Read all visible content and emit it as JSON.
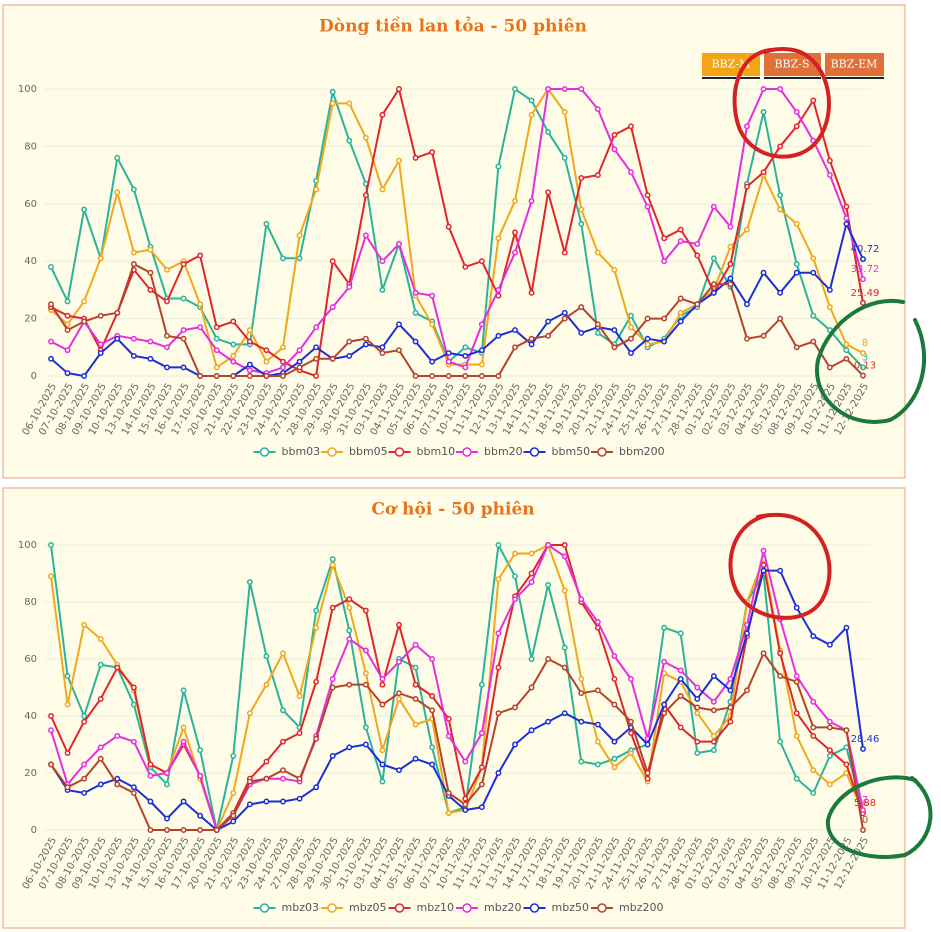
{
  "buttons": [
    "BBZ-M",
    "BBZ-S",
    "BBZ-EM"
  ],
  "chart_data": [
    {
      "type": "line",
      "title": "Dòng tiền lan tỏa - 50 phiên",
      "categories": [
        "06-10-2025",
        "07-10-2025",
        "08-10-2025",
        "09-10-2025",
        "10-10-2025",
        "13-10-2025",
        "14-10-2025",
        "15-10-2025",
        "16-10-2025",
        "17-10-2025",
        "20-10-2025",
        "21-10-2025",
        "22-10-2025",
        "23-10-2025",
        "24-10-2025",
        "27-10-2025",
        "28-10-2025",
        "29-10-2025",
        "30-10-2025",
        "31-10-2025",
        "03-11-2025",
        "04-11-2025",
        "05-11-2025",
        "06-11-2025",
        "07-11-2025",
        "10-11-2025",
        "11-11-2025",
        "12-11-2025",
        "13-11-2025",
        "14-11-2025",
        "17-11-2025",
        "18-11-2025",
        "19-11-2025",
        "20-11-2025",
        "21-11-2025",
        "24-11-2025",
        "25-11-2025",
        "26-11-2025",
        "27-11-2025",
        "28-11-2025",
        "01-12-2025",
        "02-12-2025",
        "03-12-2025",
        "04-12-2025",
        "05-12-2025",
        "08-12-2025",
        "09-12-2025",
        "10-12-2025",
        "11-12-2025",
        "12-12-2025"
      ],
      "series": [
        {
          "name": "bbm03",
          "color": "#2bb39a",
          "values": [
            38,
            26,
            58,
            41,
            76,
            65,
            45,
            27,
            27,
            24,
            13,
            11,
            11,
            53,
            41,
            41,
            68,
            99,
            82,
            67,
            30,
            46,
            22,
            19,
            5,
            10,
            8,
            73,
            100,
            96,
            85,
            76,
            53,
            15,
            11,
            21,
            10,
            13,
            21,
            24,
            41,
            31,
            67,
            92,
            63,
            39,
            21,
            16,
            9,
            3
          ]
        },
        {
          "name": "bbm05",
          "color": "#f0a81c",
          "values": [
            23,
            18,
            26,
            41,
            64,
            43,
            44,
            37,
            40,
            25,
            3,
            7,
            16,
            5,
            10,
            49,
            65,
            95,
            95,
            83,
            65,
            75,
            28,
            18,
            4,
            4,
            4,
            48,
            61,
            91,
            100,
            92,
            58,
            43,
            37,
            17,
            11,
            12,
            22,
            25,
            30,
            45,
            51,
            70,
            58,
            53,
            41,
            24,
            11,
            8
          ]
        },
        {
          "name": "bbm10",
          "color": "#e0262a",
          "values": [
            24,
            21,
            20,
            9,
            22,
            37,
            30,
            26,
            39,
            42,
            17,
            19,
            12,
            9,
            5,
            2,
            0,
            40,
            32,
            63,
            91,
            100,
            76,
            78,
            52,
            38,
            40,
            28,
            50,
            29,
            64,
            43,
            69,
            70,
            84,
            87,
            63,
            48,
            51,
            42,
            29,
            39,
            66,
            71,
            80,
            87,
            96,
            75,
            59,
            25.49
          ]
        },
        {
          "name": "bbm20",
          "color": "#e62ee0",
          "values": [
            12,
            9,
            19,
            11,
            14,
            13,
            12,
            10,
            16,
            17,
            9,
            5,
            2,
            1,
            3,
            9,
            17,
            24,
            31,
            49,
            40,
            46,
            29,
            28,
            5,
            3,
            18,
            30,
            43,
            61,
            100,
            100,
            100,
            93,
            79,
            71,
            59,
            40,
            47,
            46,
            59,
            52,
            87,
            100,
            100,
            92,
            82,
            70,
            55,
            33.72
          ]
        },
        {
          "name": "bbm50",
          "color": "#1c2fd6",
          "values": [
            6,
            1,
            0,
            8,
            13,
            7,
            6,
            3,
            3,
            0,
            0,
            0,
            4,
            0,
            1,
            5,
            10,
            6,
            7,
            11,
            10,
            18,
            12,
            5,
            8,
            7,
            9,
            14,
            16,
            11,
            19,
            22,
            15,
            17,
            16,
            8,
            13,
            12,
            19,
            25,
            29,
            34,
            25,
            36,
            29,
            36,
            36,
            30,
            53,
            40.72
          ]
        },
        {
          "name": "bbm200",
          "color": "#b7422a",
          "values": [
            25,
            16,
            19,
            21,
            22,
            39,
            36,
            14,
            13,
            0,
            0,
            0,
            0,
            0,
            0,
            3,
            6,
            6,
            12,
            13,
            8,
            9,
            0,
            0,
            0,
            0,
            0,
            0,
            10,
            13,
            14,
            20,
            24,
            18,
            10,
            13,
            20,
            20,
            27,
            25,
            32,
            32,
            13,
            14,
            20,
            10,
            12,
            3,
            6,
            0.13
          ]
        }
      ],
      "ylim": [
        0,
        100
      ],
      "yticks": [
        0,
        20,
        40,
        60,
        80,
        100
      ],
      "grid": true,
      "legend": "bottom"
    },
    {
      "type": "line",
      "title": "Cơ hội - 50 phiên",
      "categories": [
        "06-10-2025",
        "07-10-2025",
        "08-10-2025",
        "09-10-2025",
        "10-10-2025",
        "13-10-2025",
        "14-10-2025",
        "15-10-2025",
        "16-10-2025",
        "17-10-2025",
        "20-10-2025",
        "21-10-2025",
        "22-10-2025",
        "23-10-2025",
        "24-10-2025",
        "27-10-2025",
        "28-10-2025",
        "29-10-2025",
        "30-10-2025",
        "31-10-2025",
        "03-11-2025",
        "04-11-2025",
        "05-11-2025",
        "06-11-2025",
        "07-11-2025",
        "10-11-2025",
        "11-11-2025",
        "12-11-2025",
        "13-11-2025",
        "14-11-2025",
        "17-11-2025",
        "18-11-2025",
        "19-11-2025",
        "20-11-2025",
        "21-11-2025",
        "24-11-2025",
        "25-11-2025",
        "26-11-2025",
        "27-11-2025",
        "28-11-2025",
        "01-12-2025",
        "02-12-2025",
        "03-12-2025",
        "04-12-2025",
        "05-12-2025",
        "08-12-2025",
        "09-12-2025",
        "10-12-2025",
        "11-12-2025",
        "12-12-2025"
      ],
      "series": [
        {
          "name": "mbz03",
          "color": "#2bb39a",
          "values": [
            100,
            54,
            40,
            58,
            57,
            44,
            22,
            16,
            49,
            28,
            0,
            26,
            87,
            61,
            42,
            36,
            77,
            95,
            70,
            36,
            17,
            60,
            57,
            29,
            6,
            8,
            51,
            100,
            89,
            60,
            86,
            64,
            24,
            23,
            25,
            28,
            30,
            71,
            69,
            27,
            28,
            45,
            80,
            90,
            31,
            18,
            13,
            26,
            29,
            6
          ]
        },
        {
          "name": "mbz05",
          "color": "#f0a81c",
          "values": [
            89,
            44,
            72,
            67,
            58,
            49,
            23,
            20,
            36,
            18,
            0,
            13,
            41,
            51,
            62,
            47,
            71,
            93,
            78,
            55,
            28,
            46,
            37,
            39,
            6,
            7,
            22,
            88,
            97,
            97,
            100,
            84,
            53,
            31,
            22,
            27,
            17,
            55,
            52,
            41,
            33,
            40,
            80,
            95,
            63,
            33,
            21,
            16,
            20,
            6
          ]
        },
        {
          "name": "mbz10",
          "color": "#e0262a",
          "values": [
            40,
            27,
            38,
            46,
            57,
            50,
            23,
            20,
            30,
            19,
            0,
            6,
            18,
            24,
            31,
            34,
            52,
            78,
            81,
            77,
            51,
            72,
            51,
            47,
            39,
            11,
            22,
            57,
            82,
            90,
            100,
            100,
            80,
            71,
            53,
            34,
            18,
            44,
            36,
            31,
            31,
            38,
            68,
            93,
            62,
            41,
            33,
            28,
            23,
            5.88
          ]
        },
        {
          "name": "mbz20",
          "color": "#e62ee0",
          "values": [
            35,
            16,
            23,
            29,
            33,
            31,
            19,
            20,
            31,
            19,
            0,
            5,
            16,
            18,
            18,
            17,
            33,
            53,
            67,
            63,
            53,
            59,
            65,
            60,
            33,
            24,
            34,
            69,
            81,
            87,
            100,
            96,
            81,
            73,
            61,
            53,
            32,
            59,
            56,
            50,
            45,
            53,
            72,
            98,
            74,
            54,
            45,
            38,
            35,
            7
          ]
        },
        {
          "name": "mbz50",
          "color": "#1c2fd6",
          "values": [
            23,
            14,
            13,
            16,
            18,
            15,
            10,
            4,
            10,
            5,
            0,
            3,
            9,
            10,
            10,
            11,
            15,
            26,
            29,
            30,
            23,
            21,
            25,
            23,
            12,
            7,
            8,
            20,
            30,
            35,
            38,
            41,
            38,
            37,
            31,
            36,
            30,
            44,
            53,
            46,
            54,
            49,
            69,
            91,
            91,
            78,
            68,
            65,
            71,
            28.46
          ]
        },
        {
          "name": "mbz200",
          "color": "#b7422a",
          "values": [
            23,
            15,
            18,
            25,
            16,
            13,
            0,
            0,
            0,
            0,
            0,
            5,
            17,
            18,
            21,
            18,
            32,
            50,
            51,
            51,
            44,
            48,
            46,
            42,
            13,
            9,
            16,
            41,
            43,
            50,
            60,
            57,
            48,
            49,
            44,
            38,
            20,
            41,
            47,
            43,
            42,
            43,
            49,
            62,
            54,
            52,
            36,
            36,
            35,
            0
          ]
        }
      ],
      "ylim": [
        0,
        100
      ],
      "yticks": [
        0,
        20,
        40,
        60,
        80,
        100
      ],
      "grid": true,
      "legend": "bottom"
    }
  ]
}
